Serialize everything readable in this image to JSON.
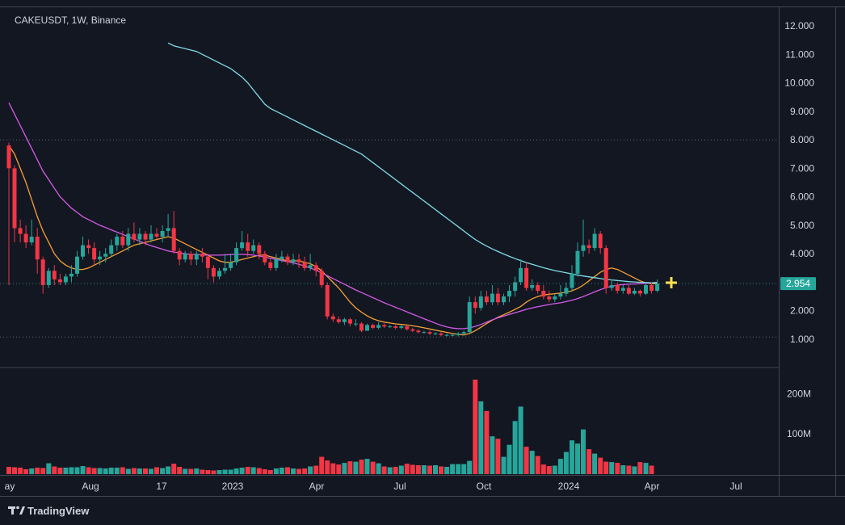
{
  "header": {
    "symbol_line": "CAKEUSDT, 1W, Binance"
  },
  "footer": {
    "brand": "TradingView"
  },
  "price_badge": {
    "value": "2.954",
    "color": "#26a69a"
  },
  "colors": {
    "up": "#26a69a",
    "down": "#f23645",
    "ma_fast": "#f7a035",
    "ma_mid": "#d55be8",
    "ma_slow": "#7fdde4",
    "bg": "#131722"
  },
  "chart_data": {
    "type": "candlestick",
    "title": "CAKEUSDT, 1W, Binance",
    "y_ticks": [
      "12.000",
      "11.000",
      "10.000",
      "9.000",
      "8.000",
      "7.000",
      "6.000",
      "5.000",
      "4.000",
      "3.000",
      "2.000",
      "1.000"
    ],
    "ylim": [
      0.55,
      12.4
    ],
    "volume_ticks": [
      "200M",
      "100M"
    ],
    "volume_ylim": [
      0,
      245
    ],
    "x_ticks": [
      "ay",
      "Aug",
      "17",
      "2023",
      "Apr",
      "Jul",
      "Oct",
      "2024",
      "Apr",
      "Jul"
    ],
    "dotted_levels": [
      8.0,
      2.954,
      1.08
    ],
    "candles": [
      [
        7.8,
        7.0,
        7.9,
        2.9
      ],
      [
        7.0,
        4.9,
        7.1,
        4.4
      ],
      [
        4.9,
        4.7,
        5.2,
        4.4
      ],
      [
        4.7,
        4.4,
        5.0,
        4.2
      ],
      [
        4.4,
        4.6,
        5.2,
        4.3
      ],
      [
        4.6,
        3.8,
        4.9,
        3.3
      ],
      [
        3.8,
        2.9,
        3.9,
        2.6
      ],
      [
        2.9,
        3.4,
        3.5,
        2.8
      ],
      [
        3.4,
        3.1,
        3.6,
        2.9
      ],
      [
        3.1,
        3.0,
        3.3,
        2.9
      ],
      [
        3.0,
        3.2,
        3.3,
        2.9
      ],
      [
        3.2,
        3.3,
        3.6,
        3.0
      ],
      [
        3.3,
        3.9,
        4.1,
        3.2
      ],
      [
        3.9,
        4.3,
        4.6,
        3.8
      ],
      [
        4.3,
        4.2,
        4.5,
        4.0
      ],
      [
        4.2,
        3.8,
        4.4,
        3.6
      ],
      [
        3.8,
        3.9,
        4.1,
        3.6
      ],
      [
        3.9,
        4.0,
        4.2,
        3.7
      ],
      [
        4.0,
        4.3,
        4.5,
        3.9
      ],
      [
        4.3,
        4.6,
        4.7,
        4.1
      ],
      [
        4.6,
        4.3,
        4.8,
        4.2
      ],
      [
        4.3,
        4.7,
        4.9,
        4.1
      ],
      [
        4.7,
        4.5,
        5.1,
        4.4
      ],
      [
        4.5,
        4.7,
        4.9,
        4.3
      ],
      [
        4.7,
        4.5,
        4.8,
        4.3
      ],
      [
        4.5,
        4.7,
        5.0,
        4.4
      ],
      [
        4.7,
        4.6,
        4.9,
        4.5
      ],
      [
        4.6,
        4.8,
        5.0,
        4.4
      ],
      [
        4.8,
        4.9,
        5.4,
        4.6
      ],
      [
        4.9,
        4.1,
        5.5,
        4.0
      ],
      [
        4.1,
        3.8,
        4.2,
        3.6
      ],
      [
        3.8,
        4.0,
        4.1,
        3.7
      ],
      [
        4.0,
        3.8,
        4.1,
        3.6
      ],
      [
        3.8,
        4.0,
        4.1,
        3.6
      ],
      [
        4.0,
        3.9,
        4.2,
        3.7
      ],
      [
        3.9,
        3.5,
        4.0,
        3.1
      ],
      [
        3.5,
        3.2,
        3.6,
        3.0
      ],
      [
        3.2,
        3.4,
        3.5,
        3.1
      ],
      [
        3.4,
        3.5,
        4.0,
        3.3
      ],
      [
        3.5,
        3.7,
        4.0,
        3.4
      ],
      [
        3.7,
        4.2,
        4.4,
        3.6
      ],
      [
        4.2,
        4.4,
        4.8,
        4.1
      ],
      [
        4.4,
        4.1,
        4.7,
        3.9
      ],
      [
        4.1,
        4.3,
        4.5,
        4.0
      ],
      [
        4.3,
        4.0,
        4.4,
        3.8
      ],
      [
        4.0,
        3.7,
        4.1,
        3.6
      ],
      [
        3.7,
        3.5,
        3.8,
        3.4
      ],
      [
        3.5,
        3.8,
        4.0,
        3.4
      ],
      [
        3.8,
        3.9,
        4.1,
        3.7
      ],
      [
        3.9,
        3.7,
        4.0,
        3.6
      ],
      [
        3.7,
        3.8,
        4.0,
        3.6
      ],
      [
        3.8,
        3.7,
        4.0,
        3.5
      ],
      [
        3.7,
        3.5,
        3.9,
        3.4
      ],
      [
        3.5,
        3.6,
        4.0,
        3.4
      ],
      [
        3.6,
        3.4,
        3.7,
        3.2
      ],
      [
        3.4,
        2.9,
        3.5,
        2.8
      ],
      [
        2.9,
        1.8,
        3.0,
        1.7
      ],
      [
        1.8,
        1.7,
        1.9,
        1.6
      ],
      [
        1.7,
        1.6,
        1.8,
        1.55
      ],
      [
        1.6,
        1.7,
        1.75,
        1.5
      ],
      [
        1.7,
        1.55,
        1.75,
        1.45
      ],
      [
        1.55,
        1.55,
        1.7,
        1.45
      ],
      [
        1.55,
        1.3,
        1.6,
        1.25
      ],
      [
        1.3,
        1.5,
        1.55,
        1.3
      ],
      [
        1.5,
        1.4,
        1.55,
        1.35
      ],
      [
        1.4,
        1.5,
        1.6,
        1.35
      ],
      [
        1.5,
        1.45,
        1.55,
        1.4
      ],
      [
        1.45,
        1.45,
        1.5,
        1.4
      ],
      [
        1.45,
        1.4,
        1.5,
        1.35
      ],
      [
        1.4,
        1.45,
        1.5,
        1.35
      ],
      [
        1.45,
        1.35,
        1.5,
        1.3
      ],
      [
        1.35,
        1.3,
        1.4,
        1.25
      ],
      [
        1.3,
        1.25,
        1.35,
        1.2
      ],
      [
        1.25,
        1.25,
        1.3,
        1.2
      ],
      [
        1.25,
        1.2,
        1.3,
        1.15
      ],
      [
        1.2,
        1.2,
        1.25,
        1.15
      ],
      [
        1.2,
        1.15,
        1.25,
        1.1
      ],
      [
        1.15,
        1.15,
        1.2,
        1.1
      ],
      [
        1.15,
        1.15,
        1.2,
        1.1
      ],
      [
        1.15,
        1.2,
        1.25,
        1.1
      ],
      [
        1.2,
        1.25,
        1.3,
        1.15
      ],
      [
        1.25,
        2.3,
        2.5,
        1.2
      ],
      [
        2.3,
        2.1,
        2.5,
        1.9
      ],
      [
        2.1,
        2.5,
        2.7,
        2.0
      ],
      [
        2.5,
        2.3,
        2.7,
        2.2
      ],
      [
        2.3,
        2.6,
        2.9,
        2.2
      ],
      [
        2.6,
        2.3,
        2.8,
        2.2
      ],
      [
        2.3,
        2.5,
        2.6,
        2.2
      ],
      [
        2.5,
        2.7,
        2.9,
        2.3
      ],
      [
        2.7,
        3.0,
        3.2,
        2.5
      ],
      [
        3.0,
        3.5,
        3.8,
        2.9
      ],
      [
        3.5,
        2.8,
        3.7,
        2.7
      ],
      [
        2.8,
        2.9,
        3.1,
        2.7
      ],
      [
        2.9,
        2.7,
        3.0,
        2.6
      ],
      [
        2.7,
        2.5,
        2.9,
        2.4
      ],
      [
        2.5,
        2.4,
        2.7,
        2.3
      ],
      [
        2.4,
        2.5,
        2.6,
        2.3
      ],
      [
        2.5,
        2.6,
        2.9,
        2.4
      ],
      [
        2.6,
        2.8,
        3.0,
        2.5
      ],
      [
        2.8,
        3.3,
        3.6,
        2.7
      ],
      [
        3.3,
        4.1,
        4.4,
        3.2
      ],
      [
        4.1,
        4.3,
        5.2,
        3.9
      ],
      [
        4.3,
        4.2,
        4.5,
        4.0
      ],
      [
        4.2,
        4.7,
        4.9,
        4.1
      ],
      [
        4.7,
        4.2,
        4.8,
        4.0
      ],
      [
        4.2,
        2.8,
        4.3,
        2.6
      ],
      [
        2.8,
        2.9,
        3.1,
        2.7
      ],
      [
        2.9,
        2.7,
        3.0,
        2.6
      ],
      [
        2.7,
        2.8,
        2.9,
        2.6
      ],
      [
        2.8,
        2.6,
        2.9,
        2.55
      ],
      [
        2.6,
        2.7,
        2.8,
        2.55
      ],
      [
        2.7,
        2.6,
        2.75,
        2.5
      ],
      [
        2.6,
        2.9,
        3.0,
        2.55
      ],
      [
        2.9,
        2.7,
        3.0,
        2.6
      ],
      [
        2.7,
        2.95,
        3.1,
        2.65
      ]
    ],
    "volume": [
      18,
      17,
      16,
      12,
      14,
      16,
      15,
      27,
      19,
      16,
      16,
      17,
      17,
      20,
      17,
      15,
      15,
      14,
      16,
      16,
      17,
      13,
      15,
      14,
      14,
      13,
      17,
      15,
      19,
      26,
      18,
      13,
      13,
      14,
      11,
      10,
      9,
      10,
      11,
      11,
      14,
      16,
      18,
      17,
      15,
      12,
      10,
      14,
      16,
      17,
      14,
      13,
      14,
      19,
      21,
      43,
      34,
      27,
      24,
      28,
      32,
      31,
      36,
      38,
      31,
      27,
      19,
      17,
      18,
      21,
      26,
      23,
      22,
      22,
      21,
      22,
      19,
      18,
      25,
      25,
      25,
      33,
      235,
      181,
      157,
      94,
      88,
      43,
      73,
      132,
      168,
      68,
      58,
      45,
      24,
      20,
      21,
      38,
      55,
      84,
      76,
      111,
      62,
      51,
      41,
      31,
      30,
      28,
      22,
      21,
      19,
      30,
      28,
      21,
      null
    ],
    "series": [
      {
        "name": "",
        "color": "#f7a035",
        "values": [
          7.8,
          7.5,
          7.0,
          6.5,
          5.9,
          5.3,
          4.8,
          4.4,
          4.0,
          3.75,
          3.6,
          3.5,
          3.45,
          3.45,
          3.5,
          3.6,
          3.7,
          3.8,
          3.9,
          4.0,
          4.1,
          4.2,
          4.3,
          4.35,
          4.4,
          4.45,
          4.5,
          4.55,
          4.6,
          4.55,
          4.45,
          4.35,
          4.25,
          4.15,
          4.05,
          3.95,
          3.85,
          3.75,
          3.7,
          3.7,
          3.75,
          3.8,
          3.85,
          3.9,
          3.95,
          3.95,
          3.9,
          3.85,
          3.8,
          3.75,
          3.75,
          3.75,
          3.7,
          3.65,
          3.55,
          3.4,
          3.2,
          3.0,
          2.8,
          2.55,
          2.3,
          2.1,
          1.95,
          1.82,
          1.72,
          1.65,
          1.6,
          1.57,
          1.54,
          1.52,
          1.5,
          1.47,
          1.44,
          1.4,
          1.36,
          1.32,
          1.28,
          1.24,
          1.2,
          1.17,
          1.15,
          1.2,
          1.3,
          1.42,
          1.55,
          1.67,
          1.77,
          1.86,
          1.95,
          2.05,
          2.15,
          2.3,
          2.42,
          2.5,
          2.55,
          2.58,
          2.6,
          2.62,
          2.65,
          2.7,
          2.78,
          2.9,
          3.05,
          3.2,
          3.35,
          3.45,
          3.5,
          3.45,
          3.35,
          3.25,
          3.15,
          3.05,
          2.98,
          2.95,
          2.95
        ]
      },
      {
        "name": "",
        "color": "#d55be8",
        "values": [
          9.3,
          8.9,
          8.5,
          8.1,
          7.7,
          7.3,
          6.9,
          6.6,
          6.3,
          6.0,
          5.8,
          5.6,
          5.45,
          5.3,
          5.2,
          5.1,
          5.0,
          4.92,
          4.84,
          4.76,
          4.68,
          4.6,
          4.52,
          4.44,
          4.36,
          4.28,
          4.22,
          4.16,
          4.1,
          4.06,
          4.03,
          4.0,
          3.98,
          3.97,
          3.96,
          3.95,
          3.95,
          3.95,
          3.96,
          3.97,
          3.98,
          3.98,
          3.97,
          3.95,
          3.92,
          3.88,
          3.84,
          3.8,
          3.76,
          3.72,
          3.68,
          3.63,
          3.57,
          3.5,
          3.42,
          3.33,
          3.23,
          3.13,
          3.03,
          2.93,
          2.83,
          2.73,
          2.64,
          2.55,
          2.46,
          2.37,
          2.28,
          2.2,
          2.12,
          2.04,
          1.96,
          1.88,
          1.8,
          1.72,
          1.64,
          1.56,
          1.49,
          1.43,
          1.39,
          1.37,
          1.37,
          1.4,
          1.45,
          1.52,
          1.6,
          1.68,
          1.75,
          1.81,
          1.87,
          1.93,
          1.99,
          2.05,
          2.1,
          2.14,
          2.18,
          2.22,
          2.25,
          2.28,
          2.32,
          2.37,
          2.43,
          2.5,
          2.58,
          2.66,
          2.74,
          2.81,
          2.86,
          2.9,
          2.92,
          2.93,
          2.94,
          2.95,
          2.96,
          2.98,
          3.0
        ]
      },
      {
        "name": "",
        "color": "#7fdde4",
        "offset": 28,
        "values": [
          11.4,
          11.3,
          11.25,
          11.2,
          11.15,
          11.1,
          11.0,
          10.9,
          10.8,
          10.7,
          10.6,
          10.5,
          10.35,
          10.2,
          10.0,
          9.75,
          9.5,
          9.25,
          9.1,
          9.0,
          8.9,
          8.8,
          8.7,
          8.6,
          8.5,
          8.4,
          8.3,
          8.2,
          8.1,
          8.0,
          7.9,
          7.8,
          7.7,
          7.6,
          7.5,
          7.35,
          7.2,
          7.05,
          6.9,
          6.75,
          6.6,
          6.45,
          6.3,
          6.15,
          6.0,
          5.85,
          5.7,
          5.55,
          5.4,
          5.25,
          5.1,
          4.95,
          4.8,
          4.65,
          4.5,
          4.38,
          4.27,
          4.17,
          4.08,
          3.99,
          3.91,
          3.83,
          3.76,
          3.69,
          3.63,
          3.57,
          3.51,
          3.46,
          3.41,
          3.37,
          3.33,
          3.29,
          3.25,
          3.22,
          3.19,
          3.16,
          3.13,
          3.1,
          3.08,
          3.06,
          3.04,
          3.02,
          3.01,
          3.0,
          2.99,
          2.98,
          2.98
        ]
      }
    ]
  }
}
